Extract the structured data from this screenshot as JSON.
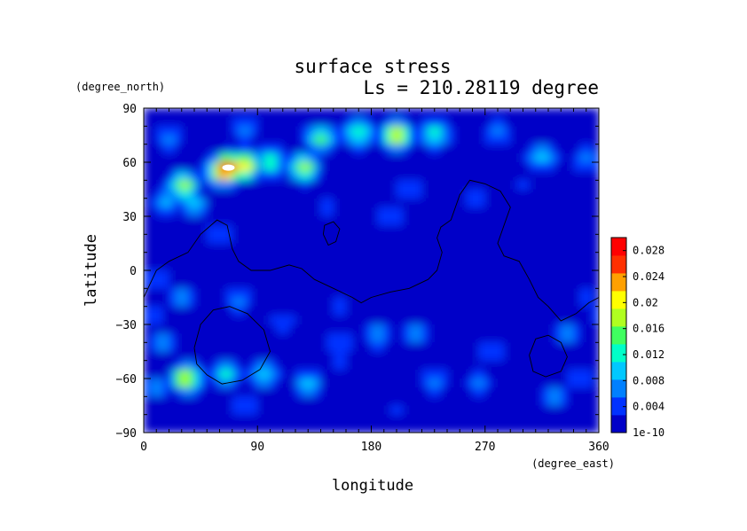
{
  "chart_data": {
    "type": "heatmap",
    "title": "surface stress",
    "subtitle": "Ls = 210.28119 degree",
    "xlabel": "longitude",
    "ylabel": "latitude",
    "x_units": "(degree_east)",
    "y_units": "(degree_north)",
    "xlim": [
      0,
      360
    ],
    "ylim": [
      -90,
      90
    ],
    "x_ticks": [
      0,
      90,
      180,
      270,
      360
    ],
    "y_ticks": [
      90,
      60,
      30,
      0,
      -30,
      -60,
      -90
    ],
    "grid": false,
    "colormap": [
      "#0000c8",
      "#0032ff",
      "#0080ff",
      "#00c8ff",
      "#00ffc8",
      "#40ff60",
      "#b0ff20",
      "#ffff00",
      "#ffa000",
      "#ff3000",
      "#ff0000"
    ],
    "colorbar": {
      "labels": [
        "0.028",
        "0.024",
        "0.02",
        "0.016",
        "0.012",
        "0.008",
        "0.004",
        "1e-10"
      ],
      "values": [
        0.028,
        0.024,
        0.02,
        0.016,
        0.012,
        0.008,
        0.004,
        1e-10
      ],
      "range": [
        0,
        0.03
      ]
    },
    "hotspots": [
      {
        "lon": 67,
        "lat": 57,
        "value": 0.03
      },
      {
        "lon": 62,
        "lat": 55,
        "value": 0.025
      },
      {
        "lon": 80,
        "lat": 58,
        "value": 0.022
      },
      {
        "lon": 100,
        "lat": 60,
        "value": 0.014
      },
      {
        "lon": 127,
        "lat": 57,
        "value": 0.019
      },
      {
        "lon": 32,
        "lat": 47,
        "value": 0.018
      },
      {
        "lon": 40,
        "lat": 36,
        "value": 0.01
      },
      {
        "lon": 18,
        "lat": 38,
        "value": 0.009
      },
      {
        "lon": 200,
        "lat": 75,
        "value": 0.022
      },
      {
        "lon": 170,
        "lat": 76,
        "value": 0.014
      },
      {
        "lon": 230,
        "lat": 76,
        "value": 0.013
      },
      {
        "lon": 140,
        "lat": 73,
        "value": 0.015
      },
      {
        "lon": 20,
        "lat": 73,
        "value": 0.008
      },
      {
        "lon": 80,
        "lat": 78,
        "value": 0.007
      },
      {
        "lon": 280,
        "lat": 77,
        "value": 0.007
      },
      {
        "lon": 315,
        "lat": 63,
        "value": 0.01
      },
      {
        "lon": 350,
        "lat": 62,
        "value": 0.008
      },
      {
        "lon": 262,
        "lat": 40,
        "value": 0.006
      },
      {
        "lon": 210,
        "lat": 45,
        "value": 0.006
      },
      {
        "lon": 195,
        "lat": 30,
        "value": 0.005
      },
      {
        "lon": 300,
        "lat": 47,
        "value": 0.004
      },
      {
        "lon": 60,
        "lat": 20,
        "value": 0.006
      },
      {
        "lon": 30,
        "lat": -15,
        "value": 0.008
      },
      {
        "lon": 75,
        "lat": -17,
        "value": 0.008
      },
      {
        "lon": 10,
        "lat": -5,
        "value": 0.005
      },
      {
        "lon": 110,
        "lat": -28,
        "value": 0.005
      },
      {
        "lon": 15,
        "lat": -40,
        "value": 0.009
      },
      {
        "lon": 5,
        "lat": -25,
        "value": 0.006
      },
      {
        "lon": 33,
        "lat": -60,
        "value": 0.021
      },
      {
        "lon": 65,
        "lat": -58,
        "value": 0.013
      },
      {
        "lon": 95,
        "lat": -57,
        "value": 0.011
      },
      {
        "lon": 130,
        "lat": -63,
        "value": 0.009
      },
      {
        "lon": 10,
        "lat": -65,
        "value": 0.008
      },
      {
        "lon": 155,
        "lat": -40,
        "value": 0.006
      },
      {
        "lon": 155,
        "lat": -20,
        "value": 0.004
      },
      {
        "lon": 155,
        "lat": -50,
        "value": 0.004
      },
      {
        "lon": 185,
        "lat": -36,
        "value": 0.009
      },
      {
        "lon": 215,
        "lat": -35,
        "value": 0.007
      },
      {
        "lon": 230,
        "lat": -62,
        "value": 0.007
      },
      {
        "lon": 265,
        "lat": -62,
        "value": 0.006
      },
      {
        "lon": 275,
        "lat": -45,
        "value": 0.006
      },
      {
        "lon": 335,
        "lat": -35,
        "value": 0.008
      },
      {
        "lon": 345,
        "lat": -60,
        "value": 0.006
      },
      {
        "lon": 325,
        "lat": -70,
        "value": 0.007
      },
      {
        "lon": 80,
        "lat": -75,
        "value": 0.005
      },
      {
        "lon": 200,
        "lat": -78,
        "value": 0.004
      },
      {
        "lon": 350,
        "lat": -15,
        "value": 0.004
      },
      {
        "lon": 145,
        "lat": 35,
        "value": 0.004
      },
      {
        "lon": 300,
        "lat": -5,
        "value": 0.003
      }
    ],
    "contours": [
      {
        "name": "dichotomy",
        "points": [
          [
            0,
            -15
          ],
          [
            10,
            0
          ],
          [
            20,
            5
          ],
          [
            35,
            10
          ],
          [
            45,
            20
          ],
          [
            58,
            28
          ],
          [
            66,
            25
          ],
          [
            70,
            12
          ],
          [
            75,
            5
          ],
          [
            85,
            0
          ],
          [
            100,
            0
          ],
          [
            115,
            3
          ],
          [
            125,
            1
          ],
          [
            135,
            -5
          ],
          [
            150,
            -10
          ],
          [
            165,
            -15
          ],
          [
            172,
            -18
          ],
          [
            180,
            -15
          ],
          [
            195,
            -12
          ],
          [
            210,
            -10
          ],
          [
            225,
            -5
          ],
          [
            232,
            0
          ],
          [
            236,
            10
          ],
          [
            232,
            18
          ],
          [
            235,
            24
          ],
          [
            243,
            28
          ],
          [
            250,
            42
          ],
          [
            258,
            50
          ],
          [
            270,
            48
          ],
          [
            282,
            44
          ],
          [
            290,
            35
          ],
          [
            285,
            25
          ],
          [
            280,
            15
          ],
          [
            285,
            8
          ],
          [
            297,
            5
          ],
          [
            305,
            -5
          ],
          [
            312,
            -15
          ],
          [
            320,
            -20
          ],
          [
            330,
            -28
          ],
          [
            342,
            -24
          ],
          [
            352,
            -18
          ],
          [
            360,
            -15
          ]
        ]
      },
      {
        "name": "hellas",
        "points": [
          [
            40,
            -43
          ],
          [
            45,
            -30
          ],
          [
            55,
            -22
          ],
          [
            68,
            -20
          ],
          [
            82,
            -24
          ],
          [
            95,
            -33
          ],
          [
            100,
            -45
          ],
          [
            92,
            -55
          ],
          [
            78,
            -61
          ],
          [
            62,
            -63
          ],
          [
            50,
            -58
          ],
          [
            42,
            -52
          ],
          [
            40,
            -43
          ]
        ]
      },
      {
        "name": "argyre",
        "points": [
          [
            305,
            -47
          ],
          [
            310,
            -38
          ],
          [
            320,
            -36
          ],
          [
            330,
            -40
          ],
          [
            335,
            -48
          ],
          [
            330,
            -56
          ],
          [
            318,
            -59
          ],
          [
            308,
            -56
          ],
          [
            305,
            -47
          ]
        ]
      },
      {
        "name": "small-loop",
        "points": [
          [
            142,
            20
          ],
          [
            143,
            25
          ],
          [
            150,
            27
          ],
          [
            155,
            23
          ],
          [
            152,
            16
          ],
          [
            146,
            14
          ],
          [
            142,
            20
          ]
        ]
      }
    ]
  }
}
